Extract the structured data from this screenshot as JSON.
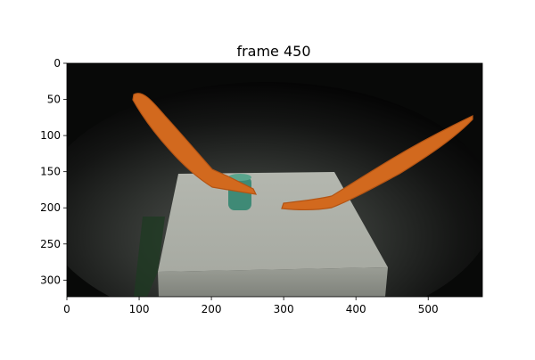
{
  "figure": {
    "title": "frame 450"
  },
  "axes": {
    "x_ticks": [
      "0",
      "100",
      "200",
      "300",
      "400",
      "500"
    ],
    "y_ticks": [
      "0",
      "50",
      "100",
      "150",
      "200",
      "250",
      "300"
    ],
    "x_range": [
      0,
      575
    ],
    "y_range": [
      0,
      323
    ]
  },
  "colors": {
    "mask": "#d2691e",
    "background": "#0b0c0b",
    "box": "#b9bcb4",
    "cup": "#3f8a76"
  }
}
